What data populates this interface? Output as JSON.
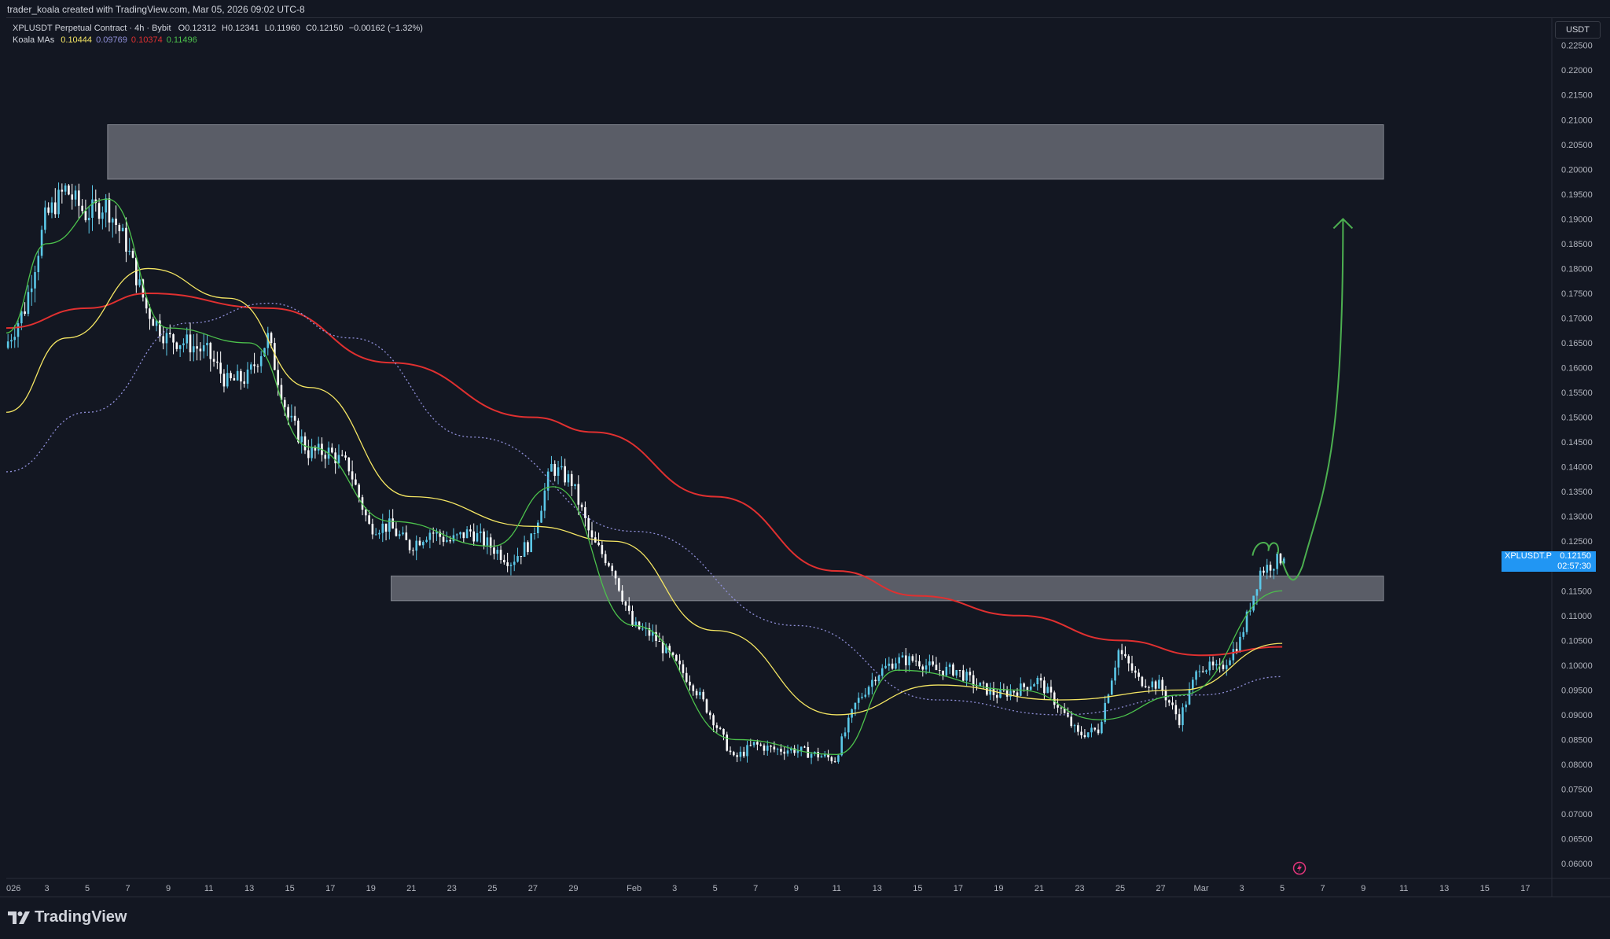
{
  "header": {
    "attribution": "trader_koala created with TradingView.com, Mar 05, 2026 09:02 UTC-8"
  },
  "legend": {
    "symbol_line": "XPLUSDT Perpetual Contract · 4h · Bybit",
    "open_label": "O",
    "open": "0.12312",
    "high_label": "H",
    "high": "0.12341",
    "low_label": "L",
    "low": "0.11960",
    "close_label": "C",
    "close": "0.12150",
    "change": "−0.00162 (−1.32%)",
    "ma_name": "Koala MAs",
    "ma_values": [
      {
        "value": "0.10444",
        "color": "#f5e663"
      },
      {
        "value": "0.09769",
        "color": "#8f8fd8"
      },
      {
        "value": "0.10374",
        "color": "#e03030"
      },
      {
        "value": "0.11496",
        "color": "#4cc14c"
      }
    ]
  },
  "price_scale": {
    "currency": "USDT",
    "ticks": [
      "0.22500",
      "0.22000",
      "0.21500",
      "0.21000",
      "0.20500",
      "0.20000",
      "0.19500",
      "0.19000",
      "0.18500",
      "0.18000",
      "0.17500",
      "0.17000",
      "0.16500",
      "0.16000",
      "0.15500",
      "0.15000",
      "0.14500",
      "0.14000",
      "0.13500",
      "0.13000",
      "0.12500",
      "0.12000",
      "0.11500",
      "0.11000",
      "0.10500",
      "0.10000",
      "0.09500",
      "0.09000",
      "0.08500",
      "0.08000",
      "0.07500",
      "0.07000",
      "0.06500",
      "0.06000"
    ]
  },
  "last_price": {
    "symbol": "XPLUSDT.P",
    "value": "0.12150",
    "countdown": "02:57:30"
  },
  "time_axis": {
    "labels": [
      "026",
      "3",
      "5",
      "7",
      "9",
      "11",
      "13",
      "15",
      "17",
      "19",
      "21",
      "23",
      "25",
      "27",
      "29",
      "Feb",
      "3",
      "5",
      "7",
      "9",
      "11",
      "13",
      "15",
      "17",
      "19",
      "21",
      "23",
      "25",
      "27",
      "Mar",
      "3",
      "5",
      "7",
      "9",
      "11",
      "13",
      "15",
      "17"
    ]
  },
  "footer": {
    "brand": "TradingView"
  },
  "colors": {
    "background": "#131722",
    "up_candle": "#5bc8e8",
    "down_candle": "#ffffff",
    "zone": "#9598a1",
    "arrow": "#4caf50",
    "ma_red": "#e03030",
    "ma_yellow": "#f5e663",
    "ma_green": "#4cc14c",
    "ma_blue_dotted": "#8f8fd8"
  },
  "chart_data": {
    "type": "candlestick",
    "timeframe": "4h",
    "x_range": [
      "2026-01-01",
      "2026-03-18"
    ],
    "ylim": [
      0.057,
      0.2305
    ],
    "zones": [
      {
        "from": "2026-01-06",
        "to": "2026-03-10",
        "low": 0.198,
        "high": 0.209
      },
      {
        "from": "2026-01-20",
        "to": "2026-03-10",
        "low": 0.113,
        "high": 0.118
      }
    ],
    "price_path": [
      {
        "date": "2026-01-01",
        "price": 0.164
      },
      {
        "date": "2026-01-02",
        "price": 0.172
      },
      {
        "date": "2026-01-03",
        "price": 0.19
      },
      {
        "date": "2026-01-04",
        "price": 0.196
      },
      {
        "date": "2026-01-05",
        "price": 0.191
      },
      {
        "date": "2026-01-06",
        "price": 0.193
      },
      {
        "date": "2026-01-07",
        "price": 0.185
      },
      {
        "date": "2026-01-08",
        "price": 0.172
      },
      {
        "date": "2026-01-09",
        "price": 0.166
      },
      {
        "date": "2026-01-10",
        "price": 0.165
      },
      {
        "date": "2026-01-11",
        "price": 0.163
      },
      {
        "date": "2026-01-12",
        "price": 0.157
      },
      {
        "date": "2026-01-13",
        "price": 0.158
      },
      {
        "date": "2026-01-14",
        "price": 0.166
      },
      {
        "date": "2026-01-15",
        "price": 0.15
      },
      {
        "date": "2026-01-16",
        "price": 0.143
      },
      {
        "date": "2026-01-17",
        "price": 0.143
      },
      {
        "date": "2026-01-18",
        "price": 0.14
      },
      {
        "date": "2026-01-19",
        "price": 0.128
      },
      {
        "date": "2026-01-20",
        "price": 0.128
      },
      {
        "date": "2026-01-21",
        "price": 0.124
      },
      {
        "date": "2026-01-22",
        "price": 0.127
      },
      {
        "date": "2026-01-23",
        "price": 0.125
      },
      {
        "date": "2026-01-24",
        "price": 0.127
      },
      {
        "date": "2026-01-25",
        "price": 0.124
      },
      {
        "date": "2026-01-26",
        "price": 0.121
      },
      {
        "date": "2026-01-27",
        "price": 0.125
      },
      {
        "date": "2026-01-28",
        "price": 0.14
      },
      {
        "date": "2026-01-29",
        "price": 0.137
      },
      {
        "date": "2026-01-30",
        "price": 0.125
      },
      {
        "date": "2026-01-31",
        "price": 0.12
      },
      {
        "date": "2026-02-01",
        "price": 0.108
      },
      {
        "date": "2026-02-02",
        "price": 0.106
      },
      {
        "date": "2026-02-03",
        "price": 0.101
      },
      {
        "date": "2026-02-04",
        "price": 0.096
      },
      {
        "date": "2026-02-05",
        "price": 0.089
      },
      {
        "date": "2026-02-06",
        "price": 0.081
      },
      {
        "date": "2026-02-07",
        "price": 0.084
      },
      {
        "date": "2026-02-08",
        "price": 0.083
      },
      {
        "date": "2026-02-09",
        "price": 0.083
      },
      {
        "date": "2026-02-10",
        "price": 0.082
      },
      {
        "date": "2026-02-11",
        "price": 0.081
      },
      {
        "date": "2026-02-12",
        "price": 0.092
      },
      {
        "date": "2026-02-13",
        "price": 0.098
      },
      {
        "date": "2026-02-14",
        "price": 0.101
      },
      {
        "date": "2026-02-15",
        "price": 0.101
      },
      {
        "date": "2026-02-16",
        "price": 0.099
      },
      {
        "date": "2026-02-17",
        "price": 0.099
      },
      {
        "date": "2026-02-18",
        "price": 0.096
      },
      {
        "date": "2026-02-19",
        "price": 0.094
      },
      {
        "date": "2026-02-20",
        "price": 0.095
      },
      {
        "date": "2026-02-21",
        "price": 0.097
      },
      {
        "date": "2026-02-22",
        "price": 0.092
      },
      {
        "date": "2026-02-23",
        "price": 0.086
      },
      {
        "date": "2026-02-24",
        "price": 0.087
      },
      {
        "date": "2026-02-25",
        "price": 0.103
      },
      {
        "date": "2026-02-26",
        "price": 0.097
      },
      {
        "date": "2026-02-27",
        "price": 0.096
      },
      {
        "date": "2026-02-28",
        "price": 0.089
      },
      {
        "date": "2026-03-01",
        "price": 0.1
      },
      {
        "date": "2026-03-02",
        "price": 0.099
      },
      {
        "date": "2026-03-03",
        "price": 0.105
      },
      {
        "date": "2026-03-04",
        "price": 0.119
      },
      {
        "date": "2026-03-05",
        "price": 0.1215
      }
    ],
    "moving_averages": [
      {
        "color": "#e03030",
        "style": "solid",
        "points": [
          {
            "date": "2026-01-01",
            "price": 0.168
          },
          {
            "date": "2026-01-05",
            "price": 0.172
          },
          {
            "date": "2026-01-08",
            "price": 0.175
          },
          {
            "date": "2026-01-14",
            "price": 0.172
          },
          {
            "date": "2026-01-20",
            "price": 0.161
          },
          {
            "date": "2026-01-27",
            "price": 0.15
          },
          {
            "date": "2026-01-30",
            "price": 0.147
          },
          {
            "date": "2026-02-05",
            "price": 0.134
          },
          {
            "date": "2026-02-11",
            "price": 0.119
          },
          {
            "date": "2026-02-15",
            "price": 0.114
          },
          {
            "date": "2026-02-20",
            "price": 0.11
          },
          {
            "date": "2026-02-25",
            "price": 0.105
          },
          {
            "date": "2026-03-01",
            "price": 0.102
          },
          {
            "date": "2026-03-05",
            "price": 0.1037
          }
        ]
      },
      {
        "color": "#f5e663",
        "style": "solid",
        "points": [
          {
            "date": "2026-01-01",
            "price": 0.151
          },
          {
            "date": "2026-01-04",
            "price": 0.166
          },
          {
            "date": "2026-01-08",
            "price": 0.18
          },
          {
            "date": "2026-01-12",
            "price": 0.174
          },
          {
            "date": "2026-01-16",
            "price": 0.156
          },
          {
            "date": "2026-01-21",
            "price": 0.134
          },
          {
            "date": "2026-01-27",
            "price": 0.128
          },
          {
            "date": "2026-01-31",
            "price": 0.125
          },
          {
            "date": "2026-02-05",
            "price": 0.107
          },
          {
            "date": "2026-02-11",
            "price": 0.09
          },
          {
            "date": "2026-02-16",
            "price": 0.096
          },
          {
            "date": "2026-02-22",
            "price": 0.093
          },
          {
            "date": "2026-02-28",
            "price": 0.095
          },
          {
            "date": "2026-03-05",
            "price": 0.1044
          }
        ]
      },
      {
        "color": "#8f8fd8",
        "style": "dotted",
        "points": [
          {
            "date": "2026-01-01",
            "price": 0.139
          },
          {
            "date": "2026-01-05",
            "price": 0.151
          },
          {
            "date": "2026-01-10",
            "price": 0.169
          },
          {
            "date": "2026-01-14",
            "price": 0.173
          },
          {
            "date": "2026-01-18",
            "price": 0.166
          },
          {
            "date": "2026-01-24",
            "price": 0.146
          },
          {
            "date": "2026-02-01",
            "price": 0.127
          },
          {
            "date": "2026-02-09",
            "price": 0.108
          },
          {
            "date": "2026-02-16",
            "price": 0.093
          },
          {
            "date": "2026-02-22",
            "price": 0.09
          },
          {
            "date": "2026-03-01",
            "price": 0.094
          },
          {
            "date": "2026-03-05",
            "price": 0.0977
          }
        ]
      },
      {
        "color": "#4cc14c",
        "style": "solid",
        "points": [
          {
            "date": "2026-01-01",
            "price": 0.167
          },
          {
            "date": "2026-01-03",
            "price": 0.185
          },
          {
            "date": "2026-01-06",
            "price": 0.194
          },
          {
            "date": "2026-01-09",
            "price": 0.168
          },
          {
            "date": "2026-01-13",
            "price": 0.165
          },
          {
            "date": "2026-01-16",
            "price": 0.144
          },
          {
            "date": "2026-01-20",
            "price": 0.129
          },
          {
            "date": "2026-01-25",
            "price": 0.124
          },
          {
            "date": "2026-01-28",
            "price": 0.136
          },
          {
            "date": "2026-02-01",
            "price": 0.108
          },
          {
            "date": "2026-02-06",
            "price": 0.085
          },
          {
            "date": "2026-02-11",
            "price": 0.082
          },
          {
            "date": "2026-02-14",
            "price": 0.099
          },
          {
            "date": "2026-02-20",
            "price": 0.095
          },
          {
            "date": "2026-02-24",
            "price": 0.089
          },
          {
            "date": "2026-02-28",
            "price": 0.094
          },
          {
            "date": "2026-03-05",
            "price": 0.115
          }
        ]
      }
    ],
    "projection_arrow": [
      {
        "date": "2026-03-05",
        "price": 0.121
      },
      {
        "date": "2026-03-06",
        "price": 0.12
      },
      {
        "date": "2026-03-07",
        "price": 0.135
      },
      {
        "date": "2026-03-08",
        "price": 0.19
      }
    ]
  }
}
